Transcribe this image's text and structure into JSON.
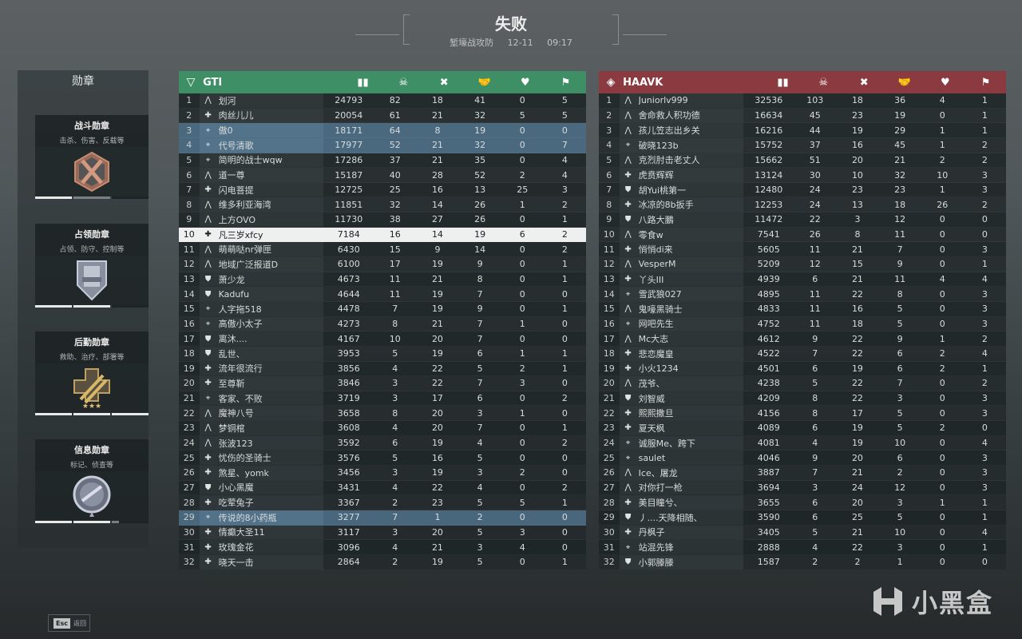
{
  "header": {
    "result": "失败",
    "mode": "堑壕战攻防",
    "date": "12-11",
    "time": "09:17"
  },
  "medals": {
    "title": "勋章",
    "items": [
      {
        "name": "战斗勋章",
        "desc": "击杀、伤害、反载等",
        "icon": "crossed-swords-bronze-medal",
        "segments": [
          {
            "fill": 1,
            "state": "full"
          },
          {
            "fill": 1,
            "state": "partial"
          },
          {
            "fill": 0,
            "state": "empty"
          }
        ]
      },
      {
        "name": "占领勋章",
        "desc": "占领、防守、控制等",
        "icon": "fortress-silver-medal",
        "segments": [
          {
            "fill": 1,
            "state": "full"
          },
          {
            "fill": 1,
            "state": "full"
          },
          {
            "fill": 0,
            "state": "empty"
          }
        ]
      },
      {
        "name": "后勤勋章",
        "desc": "救助、治疗、部署等",
        "icon": "syringe-gold-medal",
        "segments": [
          {
            "fill": 1,
            "state": "full"
          },
          {
            "fill": 1,
            "state": "full"
          },
          {
            "fill": 1,
            "state": "full"
          }
        ]
      },
      {
        "name": "信息勋章",
        "desc": "标记、侦查等",
        "icon": "radar-silver-medal",
        "segments": [
          {
            "fill": 1,
            "state": "full"
          },
          {
            "fill": 1,
            "state": "full"
          },
          {
            "fill": 0.2,
            "state": "partial"
          }
        ]
      }
    ]
  },
  "columns": [
    "score-icon",
    "kills-icon",
    "deaths-icon",
    "assists-icon",
    "revives-icon",
    "objectives-icon"
  ],
  "class_icons": {
    "a": "assault",
    "s": "support",
    "r": "recon",
    "e": "engineer"
  },
  "teams": [
    {
      "name": "GTI",
      "color": "#3f8f66",
      "icon": "gti-faction-icon",
      "squad_ranks": [
        3,
        4,
        29
      ],
      "self_rank": 10,
      "rows": [
        [
          1,
          "a",
          "划河",
          24793,
          82,
          18,
          41,
          0,
          5
        ],
        [
          2,
          "s",
          "肉丝儿儿",
          20054,
          61,
          21,
          32,
          5,
          5
        ],
        [
          3,
          "r",
          "傲0",
          18171,
          64,
          8,
          19,
          0,
          0
        ],
        [
          4,
          "r",
          "代号清歌",
          17977,
          52,
          21,
          32,
          0,
          7
        ],
        [
          5,
          "r",
          "简明的战士wqw",
          17286,
          37,
          21,
          35,
          0,
          4
        ],
        [
          6,
          "a",
          "道一尊",
          15187,
          40,
          28,
          52,
          2,
          4
        ],
        [
          7,
          "s",
          "闪电菩提",
          12725,
          25,
          16,
          13,
          25,
          3
        ],
        [
          8,
          "a",
          "维多利亚海湾",
          11851,
          32,
          14,
          26,
          1,
          2
        ],
        [
          9,
          "a",
          "上方OVO",
          11730,
          38,
          27,
          26,
          0,
          1
        ],
        [
          10,
          "s",
          "凡三岁xfcy",
          7184,
          16,
          14,
          19,
          6,
          2
        ],
        [
          11,
          "a",
          "萌萌哒nr弹匣",
          6430,
          15,
          9,
          14,
          0,
          2
        ],
        [
          12,
          "a",
          "地域广泛报道D",
          6100,
          17,
          19,
          9,
          0,
          1
        ],
        [
          13,
          "e",
          "萧少龙",
          4673,
          11,
          21,
          8,
          0,
          1
        ],
        [
          14,
          "e",
          "Kadufu",
          4644,
          11,
          19,
          7,
          0,
          0
        ],
        [
          15,
          "r",
          "人字拖518",
          4478,
          7,
          19,
          9,
          0,
          1
        ],
        [
          16,
          "r",
          "高傲小太子",
          4273,
          8,
          21,
          7,
          1,
          0
        ],
        [
          17,
          "e",
          "离沐....",
          4167,
          10,
          20,
          7,
          0,
          0
        ],
        [
          18,
          "e",
          "乱世、",
          3953,
          5,
          19,
          6,
          1,
          1
        ],
        [
          19,
          "s",
          "流年很流行",
          3856,
          4,
          22,
          5,
          2,
          1
        ],
        [
          20,
          "s",
          "至尊靳",
          3846,
          3,
          22,
          7,
          3,
          0
        ],
        [
          21,
          "r",
          "客家、不败",
          3719,
          3,
          17,
          6,
          0,
          2
        ],
        [
          22,
          "a",
          "魔神八号",
          3658,
          8,
          20,
          3,
          1,
          0
        ],
        [
          23,
          "a",
          "梦铜棺",
          3608,
          4,
          20,
          7,
          0,
          1
        ],
        [
          24,
          "a",
          "张波123",
          3592,
          6,
          19,
          4,
          0,
          2
        ],
        [
          25,
          "s",
          "忧伤的圣骑士",
          3576,
          5,
          16,
          5,
          0,
          0
        ],
        [
          26,
          "s",
          "煞星、yomk",
          3456,
          3,
          19,
          3,
          2,
          0
        ],
        [
          27,
          "e",
          "小心黑魔",
          3431,
          4,
          22,
          4,
          0,
          2
        ],
        [
          28,
          "s",
          "吃荤兔子",
          3367,
          2,
          23,
          5,
          5,
          1
        ],
        [
          29,
          "r",
          "传说的8小药瓶",
          3277,
          7,
          1,
          2,
          0,
          0
        ],
        [
          30,
          "s",
          "情癫大圣11",
          3117,
          3,
          20,
          5,
          3,
          0
        ],
        [
          31,
          "s",
          "玫瑰金花",
          3096,
          4,
          21,
          3,
          4,
          0
        ],
        [
          32,
          "s",
          "晓天一击",
          2864,
          2,
          19,
          5,
          0,
          1
        ]
      ]
    },
    {
      "name": "HAAVK",
      "color": "#8b3a40",
      "icon": "haavk-faction-icon",
      "squad_ranks": [],
      "self_rank": null,
      "rows": [
        [
          1,
          "a",
          "Juniorlv999",
          32536,
          103,
          18,
          36,
          4,
          1
        ],
        [
          2,
          "a",
          "舍命救人积功德",
          16634,
          45,
          23,
          19,
          0,
          1
        ],
        [
          3,
          "a",
          "孩儿笠志出乡关",
          16216,
          44,
          19,
          29,
          1,
          1
        ],
        [
          4,
          "r",
          "破晓123b",
          15752,
          37,
          16,
          45,
          1,
          2
        ],
        [
          5,
          "a",
          "克烈肘击老丈人",
          15662,
          51,
          20,
          21,
          2,
          2
        ],
        [
          6,
          "s",
          "虎贲辉辉",
          13124,
          30,
          10,
          32,
          10,
          3
        ],
        [
          7,
          "e",
          "胡Yui桃第一",
          12480,
          24,
          23,
          23,
          1,
          3
        ],
        [
          8,
          "s",
          "冰凉的8b扳手",
          12253,
          24,
          13,
          18,
          26,
          2
        ],
        [
          9,
          "e",
          "八路大鵬",
          11472,
          22,
          3,
          12,
          0,
          0
        ],
        [
          10,
          "a",
          "零食w",
          7541,
          26,
          8,
          11,
          0,
          0
        ],
        [
          11,
          "s",
          "悄悄di来",
          5605,
          11,
          21,
          7,
          0,
          3
        ],
        [
          12,
          "a",
          "VesperM",
          5209,
          12,
          15,
          9,
          0,
          1
        ],
        [
          13,
          "s",
          "丫头III",
          4939,
          6,
          21,
          11,
          4,
          4
        ],
        [
          14,
          "r",
          "雪武狼027",
          4895,
          11,
          22,
          8,
          0,
          3
        ],
        [
          15,
          "a",
          "鬼嚎黑骑士",
          4833,
          11,
          16,
          5,
          0,
          3
        ],
        [
          16,
          "r",
          "网吧先生",
          4752,
          11,
          18,
          5,
          0,
          3
        ],
        [
          17,
          "a",
          "Mc大志",
          4612,
          9,
          22,
          9,
          1,
          2
        ],
        [
          18,
          "s",
          "悲恋魔皇",
          4522,
          7,
          22,
          6,
          2,
          4
        ],
        [
          19,
          "s",
          "小火1234",
          4501,
          6,
          19,
          6,
          2,
          1
        ],
        [
          20,
          "a",
          "茂爷、",
          4238,
          5,
          22,
          7,
          0,
          2
        ],
        [
          21,
          "e",
          "刘智威",
          4209,
          8,
          22,
          3,
          0,
          3
        ],
        [
          22,
          "s",
          "熙熙撒旦",
          4156,
          8,
          17,
          5,
          0,
          3
        ],
        [
          23,
          "s",
          "夏天枫",
          4089,
          6,
          19,
          5,
          2,
          0
        ],
        [
          24,
          "r",
          "诚服Me、跨下",
          4081,
          4,
          19,
          10,
          0,
          4
        ],
        [
          25,
          "r",
          "saulet",
          4046,
          9,
          20,
          6,
          0,
          3
        ],
        [
          26,
          "a",
          "Ice、屠龙",
          3887,
          7,
          21,
          2,
          0,
          3
        ],
        [
          27,
          "a",
          "对你打一枪",
          3694,
          3,
          24,
          12,
          0,
          3
        ],
        [
          28,
          "s",
          "美目瞳兮、",
          3655,
          6,
          20,
          3,
          1,
          1
        ],
        [
          29,
          "e",
          "丿....天降相随、",
          3590,
          6,
          25,
          5,
          0,
          1
        ],
        [
          30,
          "s",
          "丹枫子",
          3405,
          5,
          21,
          10,
          0,
          4
        ],
        [
          31,
          "r",
          "站混先锋",
          2888,
          4,
          22,
          3,
          0,
          1
        ],
        [
          32,
          "e",
          "小郭滕滕",
          1587,
          2,
          2,
          1,
          0,
          0
        ]
      ]
    }
  ],
  "footer": {
    "esc_key": "Esc",
    "esc_label": "返回"
  },
  "watermark": "小黑盒"
}
